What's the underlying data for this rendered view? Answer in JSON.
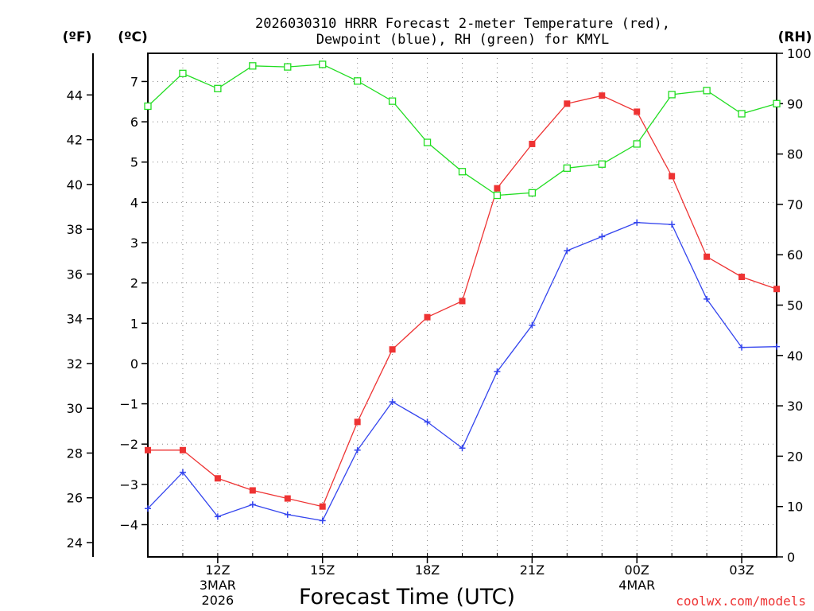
{
  "chart_data": {
    "type": "line",
    "title_line1": "2026030310 HRRR Forecast 2-meter Temperature (red),",
    "title_line2": "Dewpoint (blue), RH (green) for KMYL",
    "xlabel": "Forecast Time (UTC)",
    "unit_f": "(ºF)",
    "unit_c": "(ºC)",
    "unit_rh": "(RH)",
    "credit": "coolwx.com/models",
    "hours": [
      10,
      11,
      12,
      13,
      14,
      15,
      16,
      17,
      18,
      19,
      20,
      21,
      22,
      23,
      24,
      25,
      26,
      27,
      28
    ],
    "xlim": [
      10,
      28
    ],
    "x_ticks": [
      {
        "hour": 12,
        "label": "12Z",
        "sub1": "3MAR",
        "sub2": "2026"
      },
      {
        "hour": 15,
        "label": "15Z",
        "sub1": "",
        "sub2": ""
      },
      {
        "hour": 18,
        "label": "18Z",
        "sub1": "",
        "sub2": ""
      },
      {
        "hour": 21,
        "label": "21Z",
        "sub1": "",
        "sub2": ""
      },
      {
        "hour": 24,
        "label": "00Z",
        "sub1": "4MAR",
        "sub2": ""
      },
      {
        "hour": 27,
        "label": "03Z",
        "sub1": "",
        "sub2": ""
      }
    ],
    "c_axis": {
      "range": [
        -4.8,
        7.7
      ],
      "ticks": [
        "7",
        "6",
        "5",
        "4",
        "3",
        "2",
        "1",
        "0",
        "−1",
        "−2",
        "−3",
        "−4"
      ],
      "tick_values": [
        7,
        6,
        5,
        4,
        3,
        2,
        1,
        0,
        -1,
        -2,
        -3,
        -4
      ]
    },
    "f_axis": {
      "ticks": [
        "44",
        "42",
        "40",
        "38",
        "36",
        "34",
        "32",
        "30",
        "28",
        "26",
        "24"
      ],
      "tick_values": [
        44,
        42,
        40,
        38,
        36,
        34,
        32,
        30,
        28,
        26,
        24
      ]
    },
    "rh_axis": {
      "range": [
        0,
        100
      ],
      "ticks": [
        "100",
        "90",
        "80",
        "70",
        "60",
        "50",
        "40",
        "30",
        "20",
        "10",
        "0"
      ],
      "tick_values": [
        100,
        90,
        80,
        70,
        60,
        50,
        40,
        30,
        20,
        10,
        0
      ]
    },
    "series": [
      {
        "name": "Temperature",
        "units": "C",
        "color": "#ee3333",
        "marker": "filled-square",
        "values": [
          -2.15,
          -2.15,
          -2.85,
          -3.15,
          -3.35,
          -3.55,
          -1.45,
          0.35,
          1.15,
          1.55,
          4.35,
          5.45,
          6.45,
          6.65,
          6.25,
          4.65,
          2.65,
          2.15,
          1.85
        ]
      },
      {
        "name": "Dewpoint",
        "units": "C",
        "color": "#3344ee",
        "marker": "plus",
        "values": [
          -3.6,
          -2.7,
          -3.8,
          -3.5,
          -3.75,
          -3.9,
          -2.15,
          -0.95,
          -1.45,
          -2.1,
          -0.2,
          0.95,
          2.8,
          3.15,
          3.5,
          3.45,
          1.6,
          0.4,
          0.42
        ]
      },
      {
        "name": "RH",
        "units": "%",
        "color": "#22dd22",
        "marker": "open-square",
        "values": [
          89.5,
          96,
          93,
          97.5,
          97.3,
          97.8,
          94.5,
          90.5,
          82.3,
          76.5,
          71.8,
          72.3,
          77.2,
          78,
          82,
          91.8,
          92.6,
          88,
          90
        ]
      }
    ]
  }
}
